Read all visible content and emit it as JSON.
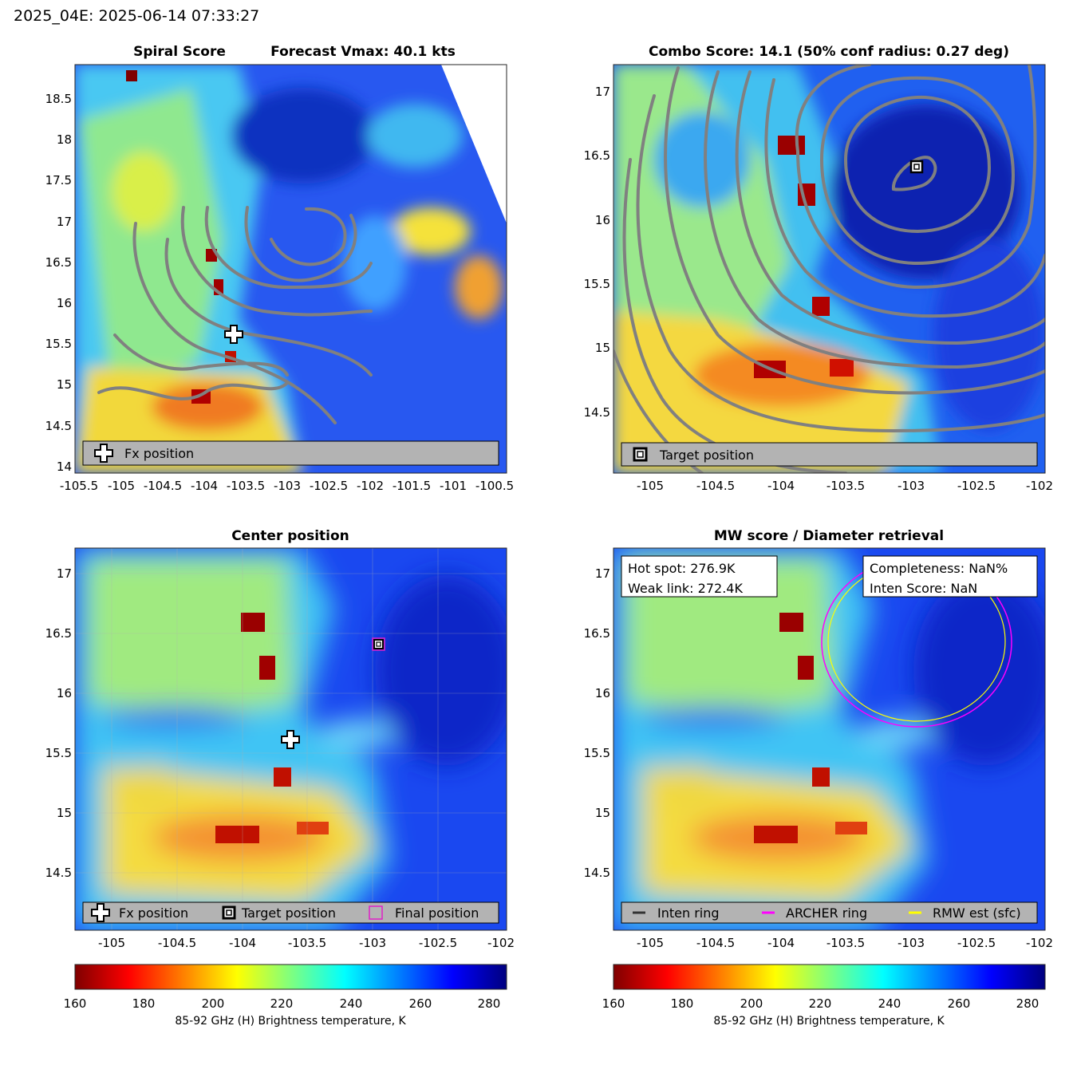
{
  "figure": {
    "supertitle": "2025_04E: 2025-06-14 07:33:27"
  },
  "colors": {
    "jet": [
      "#7f0000",
      "#ff0000",
      "#ff7f00",
      "#ffff00",
      "#7fff7f",
      "#00ffff",
      "#007fff",
      "#0000ff",
      "#00007f"
    ],
    "contour": "#808080",
    "legend_box": "#b3b3b3",
    "final_position": "#e020c8",
    "archer_ring": "#ff00ff",
    "rmw_ring": "#ffff00",
    "inten_ring": "#333333"
  },
  "panels": {
    "spiral": {
      "title_left": "Spiral Score",
      "title_right": "Forecast Vmax: 40.1 kts",
      "legend": {
        "fx": "Fx position"
      }
    },
    "combo": {
      "title": "Combo Score: 14.1  (50% conf radius: 0.27 deg)",
      "legend": {
        "target": "Target position"
      }
    },
    "center": {
      "title": "Center position",
      "legend": {
        "fx": "Fx position",
        "target": "Target position",
        "final": "Final position"
      }
    },
    "mw": {
      "title": "MW score / Diameter retrieval",
      "info_left": {
        "line1": "Hot spot: 276.9K",
        "line2": "Weak link: 272.4K"
      },
      "info_right": {
        "line1": "Completeness: NaN%",
        "line2": "Inten Score: NaN"
      },
      "legend": {
        "inten": "Inten ring",
        "archer": "ARCHER ring",
        "rmw": "RMW est (sfc)"
      }
    }
  },
  "colorbar": {
    "label": "85-92 GHz (H) Brightness temperature, K",
    "ticks": [
      "160",
      "180",
      "200",
      "220",
      "240",
      "260",
      "280"
    ],
    "range": [
      160,
      285
    ]
  },
  "chart_data": [
    {
      "type": "heatmap",
      "title": "Spiral Score",
      "annotations": [
        "Forecast Vmax: 40.1 kts"
      ],
      "xlim": [
        -105.5,
        -100.5
      ],
      "ylim": [
        14,
        18.9
      ],
      "x_ticks": [
        "-105.5",
        "-105",
        "-104.5",
        "-104",
        "-103.5",
        "-103",
        "-102.5",
        "-102",
        "-101.5",
        "-101",
        "-100.5"
      ],
      "y_ticks": [
        "14",
        "14.5",
        "15",
        "15.5",
        "16",
        "16.5",
        "17",
        "17.5",
        "18",
        "18.5"
      ],
      "markers": [
        {
          "label": "Fx position",
          "lon": -103.65,
          "lat": 15.6
        }
      ],
      "legend_position": "bottom"
    },
    {
      "type": "heatmap",
      "title": "Combo Score: 14.1  (50% conf radius: 0.27 deg)",
      "xlim": [
        -105.3,
        -102
      ],
      "ylim": [
        14.1,
        17.3
      ],
      "x_ticks": [
        "-105",
        "-104.5",
        "-104",
        "-103.5",
        "-103",
        "-102.5",
        "-102"
      ],
      "y_ticks": [
        "14.5",
        "15",
        "15.5",
        "16",
        "16.5",
        "17"
      ],
      "markers": [
        {
          "label": "Target position",
          "lon": -102.95,
          "lat": 16.41
        }
      ],
      "legend_position": "bottom"
    },
    {
      "type": "heatmap",
      "title": "Center position",
      "xlim": [
        -105.3,
        -102
      ],
      "ylim": [
        14.15,
        17.35
      ],
      "x_ticks": [
        "-105",
        "-104.5",
        "-104",
        "-103.5",
        "-103",
        "-102.5",
        "-102"
      ],
      "y_ticks": [
        "14.5",
        "15",
        "15.5",
        "16",
        "16.5",
        "17"
      ],
      "markers": [
        {
          "label": "Fx position",
          "lon": -103.65,
          "lat": 15.61
        },
        {
          "label": "Target position",
          "lon": -102.95,
          "lat": 16.41
        },
        {
          "label": "Final position",
          "lon": -102.95,
          "lat": 16.41
        }
      ],
      "legend_position": "bottom"
    },
    {
      "type": "heatmap",
      "title": "MW score / Diameter retrieval",
      "xlim": [
        -105.3,
        -102
      ],
      "ylim": [
        14.15,
        17.35
      ],
      "x_ticks": [
        "-105",
        "-104.5",
        "-104",
        "-103.5",
        "-103",
        "-102.5",
        "-102"
      ],
      "y_ticks": [
        "14.5",
        "15",
        "15.5",
        "16",
        "16.5",
        "17"
      ],
      "rings": [
        {
          "label": "ARCHER ring",
          "lon": -102.9,
          "lat": 16.38,
          "radius_deg": 0.7
        },
        {
          "label": "RMW est (sfc)",
          "lon": -102.9,
          "lat": 16.4,
          "radius_deg": 0.68
        }
      ],
      "legend_position": "bottom"
    }
  ]
}
